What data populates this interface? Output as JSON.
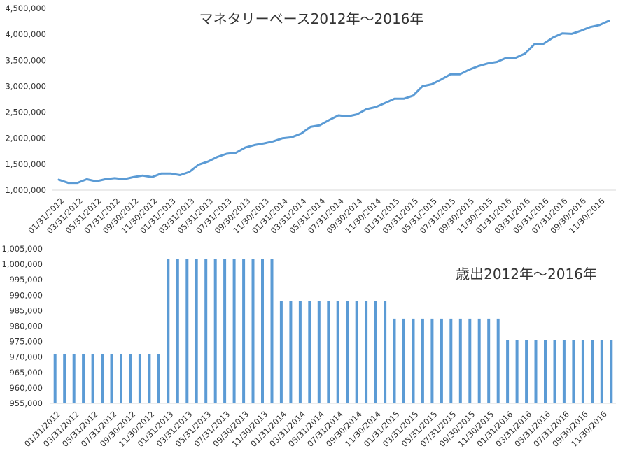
{
  "chart_data": [
    {
      "type": "line",
      "title": "マネタリーベース2012年～2016年",
      "xlabel": "",
      "ylabel": "",
      "ylim": [
        1000000,
        4500000
      ],
      "y_ticks": [
        "1,000,000",
        "1,500,000",
        "2,000,000",
        "2,500,000",
        "3,000,000",
        "3,500,000",
        "4,000,000",
        "4,500,000"
      ],
      "y_tick_values": [
        1000000,
        1500000,
        2000000,
        2500000,
        3000000,
        3500000,
        4000000,
        4500000
      ],
      "x_tick_labels": [
        "01/31/2012",
        "03/31/2012",
        "05/31/2012",
        "07/31/2012",
        "09/30/2012",
        "11/30/2012",
        "01/31/2013",
        "03/31/2013",
        "05/31/2013",
        "07/31/2013",
        "09/30/2013",
        "11/30/2013",
        "01/31/2014",
        "03/31/2014",
        "05/31/2014",
        "07/31/2014",
        "09/30/2014",
        "11/30/2014",
        "01/31/2015",
        "03/31/2015",
        "05/31/2015",
        "07/31/2015",
        "09/30/2015",
        "11/30/2015",
        "01/31/2016",
        "03/31/2016",
        "05/31/2016",
        "07/31/2016",
        "09/30/2016",
        "11/30/2016"
      ],
      "grid": false,
      "color": "#5b9bd5",
      "values": [
        1200000,
        1140000,
        1140000,
        1210000,
        1170000,
        1210000,
        1230000,
        1210000,
        1250000,
        1280000,
        1250000,
        1320000,
        1320000,
        1290000,
        1350000,
        1490000,
        1550000,
        1640000,
        1700000,
        1720000,
        1820000,
        1870000,
        1900000,
        1940000,
        2000000,
        2020000,
        2090000,
        2220000,
        2250000,
        2350000,
        2440000,
        2420000,
        2460000,
        2560000,
        2600000,
        2680000,
        2760000,
        2760000,
        2820000,
        3000000,
        3040000,
        3130000,
        3230000,
        3230000,
        3320000,
        3390000,
        3440000,
        3470000,
        3550000,
        3550000,
        3630000,
        3810000,
        3820000,
        3940000,
        4020000,
        4010000,
        4070000,
        4140000,
        4180000,
        4260000
      ]
    },
    {
      "type": "bar",
      "title": "歳出2012年～2016年",
      "xlabel": "",
      "ylabel": "",
      "ylim": [
        955000,
        1005000
      ],
      "y_ticks": [
        "955,000",
        "960,000",
        "965,000",
        "970,000",
        "975,000",
        "980,000",
        "985,000",
        "990,000",
        "995,000",
        "1,000,000",
        "1,005,000"
      ],
      "y_tick_values": [
        955000,
        960000,
        965000,
        970000,
        975000,
        980000,
        985000,
        990000,
        995000,
        1000000,
        1005000
      ],
      "x_tick_labels": [
        "01/31/2012",
        "03/31/2012",
        "05/31/2012",
        "07/31/2012",
        "09/30/2012",
        "11/30/2012",
        "01/31/2013",
        "03/31/2013",
        "05/31/2013",
        "07/31/2013",
        "09/30/2013",
        "11/30/2013",
        "01/31/2014",
        "03/31/2014",
        "05/31/2014",
        "07/31/2014",
        "09/30/2014",
        "11/30/2014",
        "01/31/2015",
        "03/31/2015",
        "05/31/2015",
        "07/31/2015",
        "09/30/2015",
        "11/30/2015",
        "01/31/2016",
        "03/31/2016",
        "05/31/2016",
        "07/31/2016",
        "09/30/2016",
        "11/30/2016"
      ],
      "grid": false,
      "color": "#5b9bd5",
      "values": [
        970900,
        970900,
        970900,
        970900,
        970900,
        970900,
        970900,
        970900,
        970900,
        970900,
        970900,
        970900,
        1001800,
        1001800,
        1001800,
        1001800,
        1001800,
        1001800,
        1001800,
        1001800,
        1001800,
        1001800,
        1001800,
        1001800,
        988200,
        988200,
        988200,
        988200,
        988200,
        988200,
        988200,
        988200,
        988200,
        988200,
        988200,
        988200,
        982400,
        982400,
        982400,
        982400,
        982400,
        982400,
        982400,
        982400,
        982400,
        982400,
        982400,
        982400,
        975400,
        975400,
        975400,
        975400,
        975400,
        975400,
        975400,
        975400,
        975400,
        975400,
        975400,
        975400
      ]
    }
  ]
}
